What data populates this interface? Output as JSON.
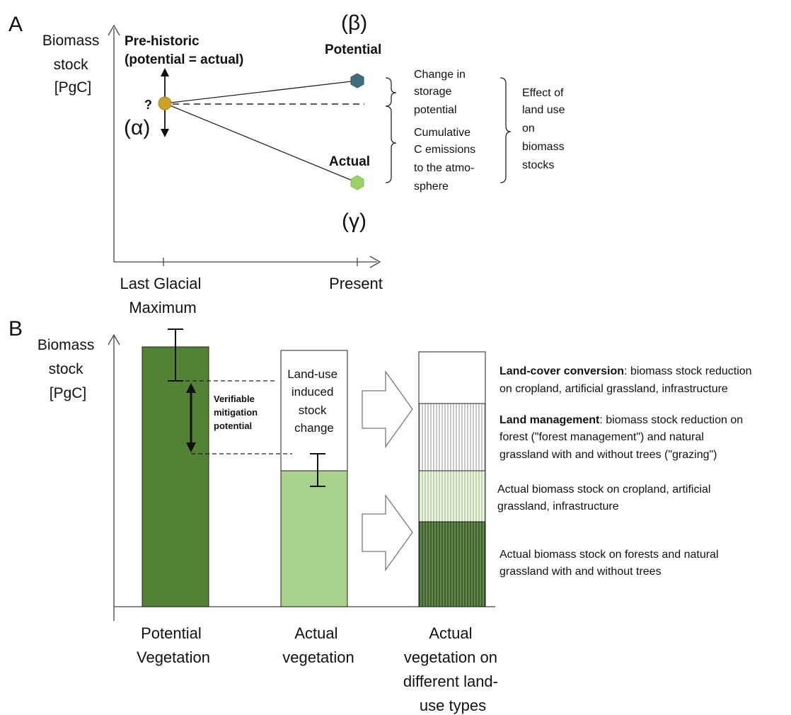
{
  "panel_a": {
    "letter": "A",
    "ylabel": [
      "Biomass",
      "stock",
      "[PgC]"
    ],
    "prehistoric_label": [
      "Pre-historic",
      "(potential = actual)"
    ],
    "question_mark": "?",
    "alpha": "(α)",
    "beta": "(β)",
    "gamma": "(γ)",
    "potential_label": "Potential",
    "actual_label": "Actual",
    "change_storage": [
      "Change in",
      "storage",
      "potential"
    ],
    "cumulative": [
      "Cumulative",
      "C emissions",
      "to the atmo-",
      "sphere"
    ],
    "effect": [
      "Effect of",
      "land use",
      "on",
      "biomass",
      "stocks"
    ],
    "xtick_left": [
      "Last Glacial",
      "Maximum"
    ],
    "xtick_right": "Present",
    "colors": {
      "alpha_point": "#c9a227",
      "potential_point": "#3f6f7a",
      "actual_point": "#9bd169"
    }
  },
  "panel_b": {
    "letter": "B",
    "ylabel": [
      "Biomass",
      "stock",
      "[PgC]"
    ],
    "verifiable": [
      "Verifiable",
      "mitigation",
      "potential"
    ],
    "land_use_induced": [
      "Land-use",
      "induced",
      "stock",
      "change"
    ],
    "categories": [
      [
        "Potential",
        "Vegetation"
      ],
      [
        "Actual",
        "vegetation"
      ],
      [
        "Actual",
        "vegetation on",
        "different land-",
        "use types"
      ]
    ],
    "legend": [
      {
        "bold": "Land-cover conversion",
        "text": ": biomass stock reduction",
        "line2": "on cropland, artificial grassland, infrastructure"
      },
      {
        "bold": "Land management",
        "text": ": biomass stock reduction on",
        "line2": "forest (\"forest management\") and natural",
        "line3": "grassland with and without trees (\"grazing\")"
      },
      {
        "text": "Actual biomass stock on cropland, artificial",
        "line2": "grassland, infrastructure"
      },
      {
        "text": "Actual biomass stock on forests and natural",
        "line2": "grassland with and without trees"
      }
    ],
    "colors": {
      "potential_bar": "#548235",
      "actual_bar": "#a9d18e",
      "dark_stripe": "#4a6b3a",
      "light_stripe": "#b5cf9b",
      "grey_stripe": "#b0b0b0"
    }
  }
}
